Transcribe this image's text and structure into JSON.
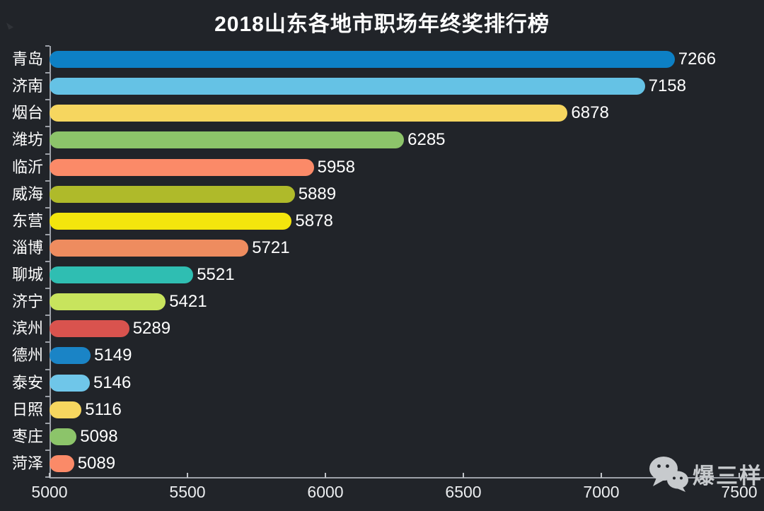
{
  "title": "2018山东各地市职场年终奖排行榜",
  "watermark": {
    "label": "爆三样",
    "icon": "wechat-icon"
  },
  "colors": {
    "background": "#212429",
    "axis_line": "#9da1a8",
    "text": "#ffffff",
    "tick_label": "#eceef0",
    "watermark": "#c7cacd"
  },
  "chart_data": {
    "type": "bar",
    "orientation": "horizontal",
    "title": "2018山东各地市职场年终奖排行榜",
    "categories": [
      "青岛",
      "济南",
      "烟台",
      "潍坊",
      "临沂",
      "威海",
      "东营",
      "淄博",
      "聊城",
      "济宁",
      "滨州",
      "德州",
      "泰安",
      "日照",
      "枣庄",
      "菏泽"
    ],
    "values": [
      7266,
      7158,
      6878,
      6285,
      5958,
      5889,
      5878,
      5721,
      5521,
      5421,
      5289,
      5149,
      5146,
      5116,
      5098,
      5089
    ],
    "bar_colors": [
      "#0d80c5",
      "#65c2e5",
      "#f6d65f",
      "#8cc46a",
      "#fb8a68",
      "#afba2a",
      "#f3e50d",
      "#ee8c5f",
      "#2fbeb2",
      "#c8e45d",
      "#d9534e",
      "#1a84c6",
      "#6fc6e9",
      "#f6d65f",
      "#8cc46a",
      "#fb8a68"
    ],
    "xlim": [
      5000,
      7500
    ],
    "x_ticks": [
      5000,
      5500,
      6000,
      6500,
      7000,
      7500
    ],
    "xlabel": "",
    "ylabel": "",
    "value_labels_shown": true,
    "grid": false,
    "legend": false
  }
}
